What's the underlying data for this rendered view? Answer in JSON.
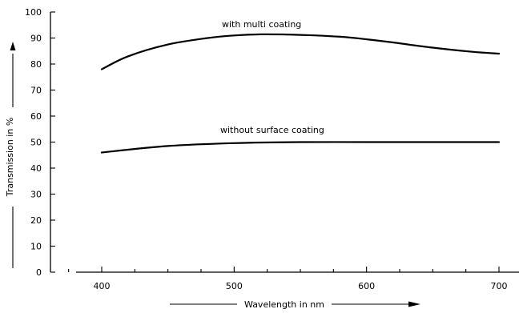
{
  "chart_data": {
    "type": "line",
    "xlabel": "Wavelength in nm",
    "ylabel": "Transmission in %",
    "xlim": [
      380,
      710
    ],
    "ylim": [
      0,
      100
    ],
    "x_ticks": [
      400,
      500,
      600,
      700
    ],
    "y_ticks": [
      0,
      10,
      20,
      30,
      40,
      50,
      60,
      70,
      80,
      90,
      100
    ],
    "grid": false,
    "series": [
      {
        "name": "with multi coating",
        "x": [
          400,
          420,
          450,
          480,
          500,
          520,
          550,
          580,
          600,
          620,
          650,
          680,
          700
        ],
        "y": [
          78,
          83,
          87.5,
          90,
          91,
          91.4,
          91.2,
          90.5,
          89.5,
          88.3,
          86.3,
          84.7,
          84
        ]
      },
      {
        "name": "without surface coating",
        "x": [
          400,
          450,
          500,
          550,
          600,
          650,
          700
        ],
        "y": [
          46,
          48.5,
          49.6,
          50,
          50,
          50,
          50
        ]
      }
    ]
  }
}
